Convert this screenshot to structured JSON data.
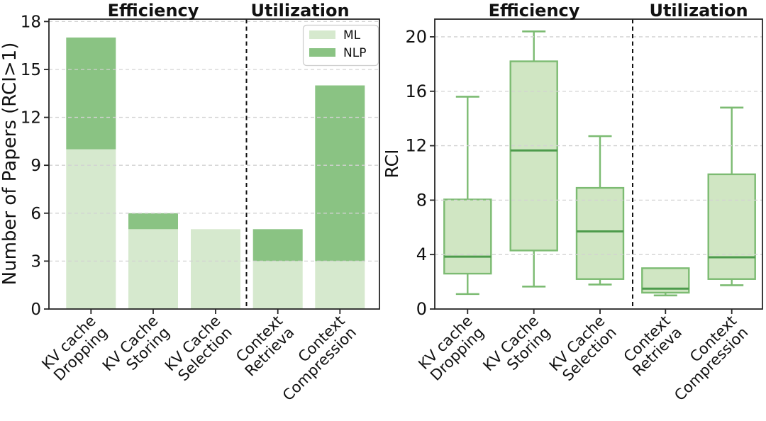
{
  "figure": {
    "background": "#ffffff",
    "section_headers": [
      "Efficiency",
      "Utilization"
    ]
  },
  "colors": {
    "ml": "#d6e9ce",
    "nlp": "#8ac383",
    "box_fill": "#d0e6c3",
    "box_edge": "#7cbb72",
    "median": "#4d9b4c",
    "grid": "#d2d2d2",
    "axis": "#262626",
    "separator": "#111111",
    "text": "#111111",
    "legend_border": "#cccccc"
  },
  "chart_data": [
    {
      "type": "bar",
      "stacked": true,
      "categories": [
        "KV cache\nDropping",
        "KV Cache\nStoring",
        "KV Cache\nSelection",
        "Context\nRetrieva",
        "Context\nCompression"
      ],
      "series": [
        {
          "name": "ML",
          "values": [
            10,
            5,
            5,
            3,
            3
          ]
        },
        {
          "name": "NLP",
          "values": [
            7,
            1,
            0,
            2,
            11
          ]
        }
      ],
      "totals": [
        17,
        6,
        5,
        5,
        14
      ],
      "title_sections": [
        {
          "label": "Efficiency",
          "span": [
            0,
            2
          ]
        },
        {
          "label": "Utilization",
          "span": [
            3,
            4
          ]
        }
      ],
      "separator_after_index": 2,
      "ylabel": "Number of Papers (RCI>1)",
      "ylim": [
        0,
        18.15
      ],
      "yticks": [
        0,
        3,
        6,
        9,
        12,
        15,
        18
      ],
      "grid": true,
      "legend": {
        "position": "upper right",
        "entries": [
          "ML",
          "NLP"
        ]
      }
    },
    {
      "type": "box",
      "categories": [
        "KV cache\nDropping",
        "KV Cache\nStoring",
        "KV Cache\nSelection",
        "Context\nRetrieva",
        "Context\nCompression"
      ],
      "stats": [
        {
          "whislo": 1.1,
          "q1": 2.6,
          "med": 3.85,
          "q3": 8.05,
          "whishi": 15.6
        },
        {
          "whislo": 1.65,
          "q1": 4.3,
          "med": 11.65,
          "q3": 18.2,
          "whishi": 20.4
        },
        {
          "whislo": 1.8,
          "q1": 2.2,
          "med": 5.7,
          "q3": 8.9,
          "whishi": 12.7
        },
        {
          "whislo": 1.0,
          "q1": 1.2,
          "med": 1.5,
          "q3": 3.0,
          "whishi": 3.0
        },
        {
          "whislo": 1.75,
          "q1": 2.2,
          "med": 3.8,
          "q3": 9.9,
          "whishi": 14.8
        }
      ],
      "title_sections": [
        {
          "label": "Efficiency",
          "span": [
            0,
            2
          ]
        },
        {
          "label": "Utilization",
          "span": [
            3,
            4
          ]
        }
      ],
      "separator_after_index": 2,
      "ylabel": "RCI",
      "ylim": [
        0,
        21.3
      ],
      "yticks": [
        0,
        4,
        8,
        12,
        16,
        20
      ],
      "grid": true
    }
  ]
}
